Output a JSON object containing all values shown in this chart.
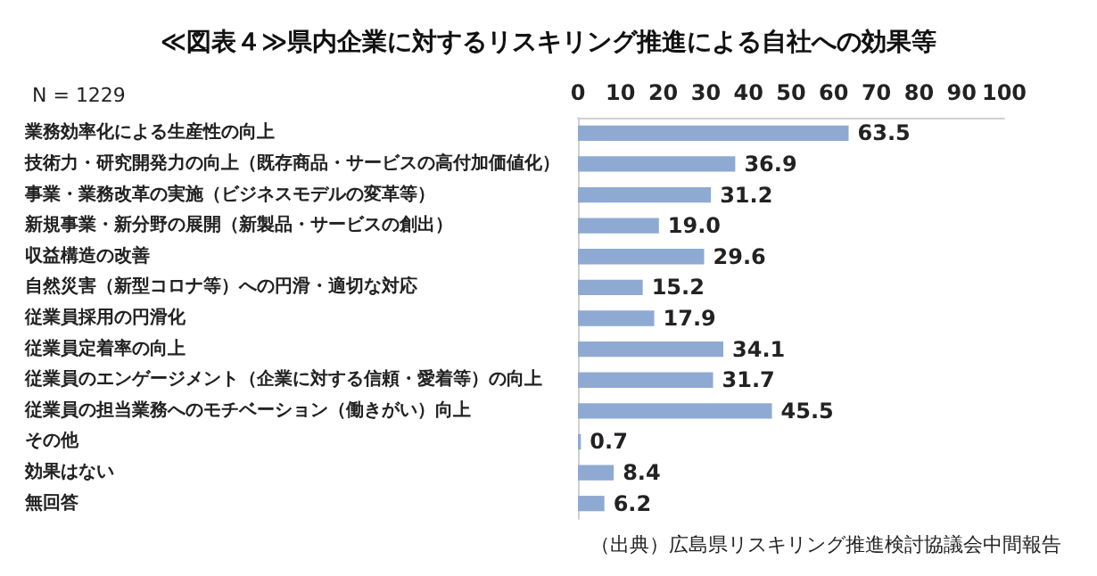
{
  "chart_data": {
    "type": "bar",
    "orientation": "horizontal",
    "title": "≪図表４≫県内企業に対するリスキリング推進による自社への効果等",
    "annotations": [
      "N = 1229",
      "（出典）広島県リスキリング推進検討協議会中間報告"
    ],
    "categories": [
      "業務効率化による生産性の向上",
      "技術力・研究開発力の向上（既存商品・サービスの高付加価値化）",
      "事業・業務改革の実施（ビジネスモデルの変革等）",
      "新規事業・新分野の展開（新製品・サービスの創出）",
      "収益構造の改善",
      "自然災害（新型コロナ等）への円滑・適切な対応",
      "従業員採用の円滑化",
      "従業員定着率の向上",
      "従業員のエンゲージメント（企業に対する信頼・愛着等）の向上",
      "従業員の担当業務へのモチベーション（働きがい）向上",
      "その他",
      "効果はない",
      "無回答"
    ],
    "values": [
      63.5,
      36.9,
      31.2,
      19.0,
      29.6,
      15.2,
      17.9,
      34.1,
      31.7,
      45.5,
      0.7,
      8.4,
      6.2
    ],
    "value_labels": [
      "63.5",
      "36.9",
      "31.2",
      "19.0",
      "29.6",
      "15.2",
      "17.9",
      "34.1",
      "31.7",
      "45.5",
      "0.7",
      "8.4",
      "6.2"
    ],
    "color": "#8eaad3",
    "xlim": [
      0,
      100
    ],
    "xticks": [
      0,
      10,
      20,
      30,
      40,
      50,
      60,
      70,
      80,
      90,
      100
    ],
    "grid": false
  }
}
